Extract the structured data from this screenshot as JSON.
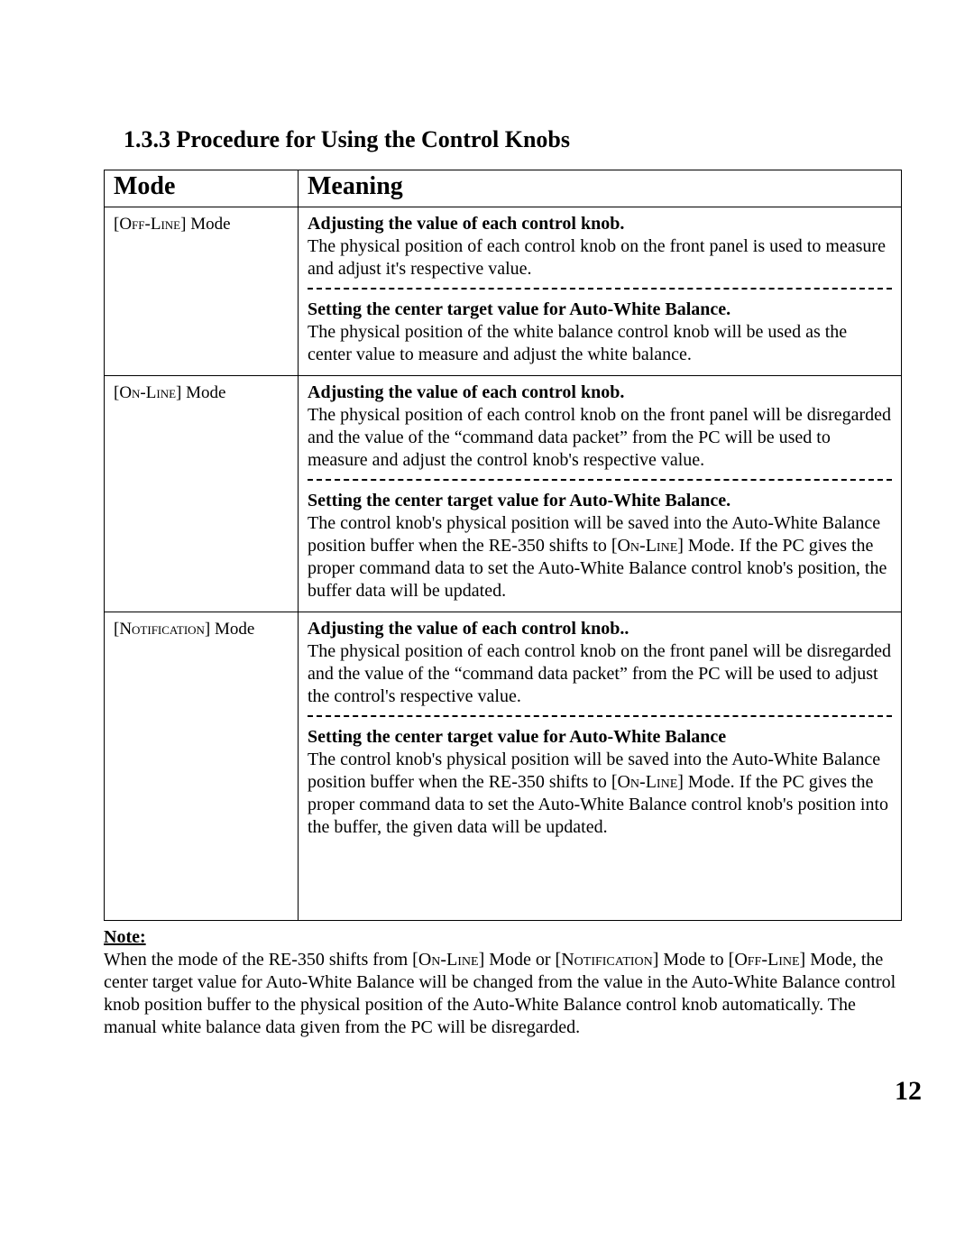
{
  "section": {
    "number": "1.3.3",
    "title": "Procedure for Using the Control Knobs"
  },
  "table": {
    "headers": {
      "mode": "Mode",
      "meaning": "Meaning"
    },
    "rows": [
      {
        "mode_label_sc": "Off-Line",
        "mode_label_suffix": " Mode",
        "block1": {
          "title": "Adjusting the value of each control knob.",
          "text": "The physical position of each control knob on the front panel is used to measure and adjust it's respective value."
        },
        "block2": {
          "title": "Setting the center target value for Auto-White Balance.",
          "text": "The physical position of the white balance control knob will be used as the center value to measure and adjust the white balance."
        }
      },
      {
        "mode_label_sc": "On-Line",
        "mode_label_suffix": " Mode",
        "block1": {
          "title": "Adjusting the value of each control knob.",
          "text": "The physical position of each control knob on the front panel will be disregarded and the value of the “command data packet” from the PC will be used to measure and adjust the control knob's respective value."
        },
        "block2": {
          "title": "Setting the center target value for Auto-White Balance.",
          "text_before_sc": "The control knob's physical position will be saved into the Auto-White Balance position buffer when the RE-350 shifts to [",
          "sc": "On-Line",
          "text_after_sc": "] Mode. If the PC gives the proper command data to set the Auto-White Balance control knob's position, the buffer data will be updated."
        }
      },
      {
        "mode_label_sc": "Notification",
        "mode_label_suffix": "  Mode",
        "block1": {
          "title": "Adjusting the value of each control knob..",
          "text": "The physical position of each control knob on the front panel will be disregarded and the value of the “command data packet” from the PC will be used to adjust the control's respective value."
        },
        "block2": {
          "title": "Setting the center target value for Auto-White Balance",
          "text_before_sc": "The control knob's physical position will be saved into the Auto-White Balance position buffer when the RE-350 shifts to [",
          "sc": "On-Line",
          "text_after_sc": "] Mode. If the PC gives the proper command data to set the Auto-White Balance control knob's position into the buffer, the given data will be updated."
        },
        "extra_bottom_space": true
      }
    ]
  },
  "note": {
    "label": "Note:",
    "p1_a": "When the mode of the RE-350 shifts from [",
    "p1_sc1": "On-Line",
    "p1_b": "] Mode or [",
    "p1_sc2": "Notification",
    "p1_c": "] Mode to [",
    "p1_sc3": "Off-Line",
    "p1_d": "] Mode, the center target value for Auto-White Balance will be changed from the value in the Auto-White Balance control knob position buffer to the physical position of the Auto-White Balance control knob automatically. The manual white balance data given from the PC will be disregarded."
  },
  "page_number": "12"
}
